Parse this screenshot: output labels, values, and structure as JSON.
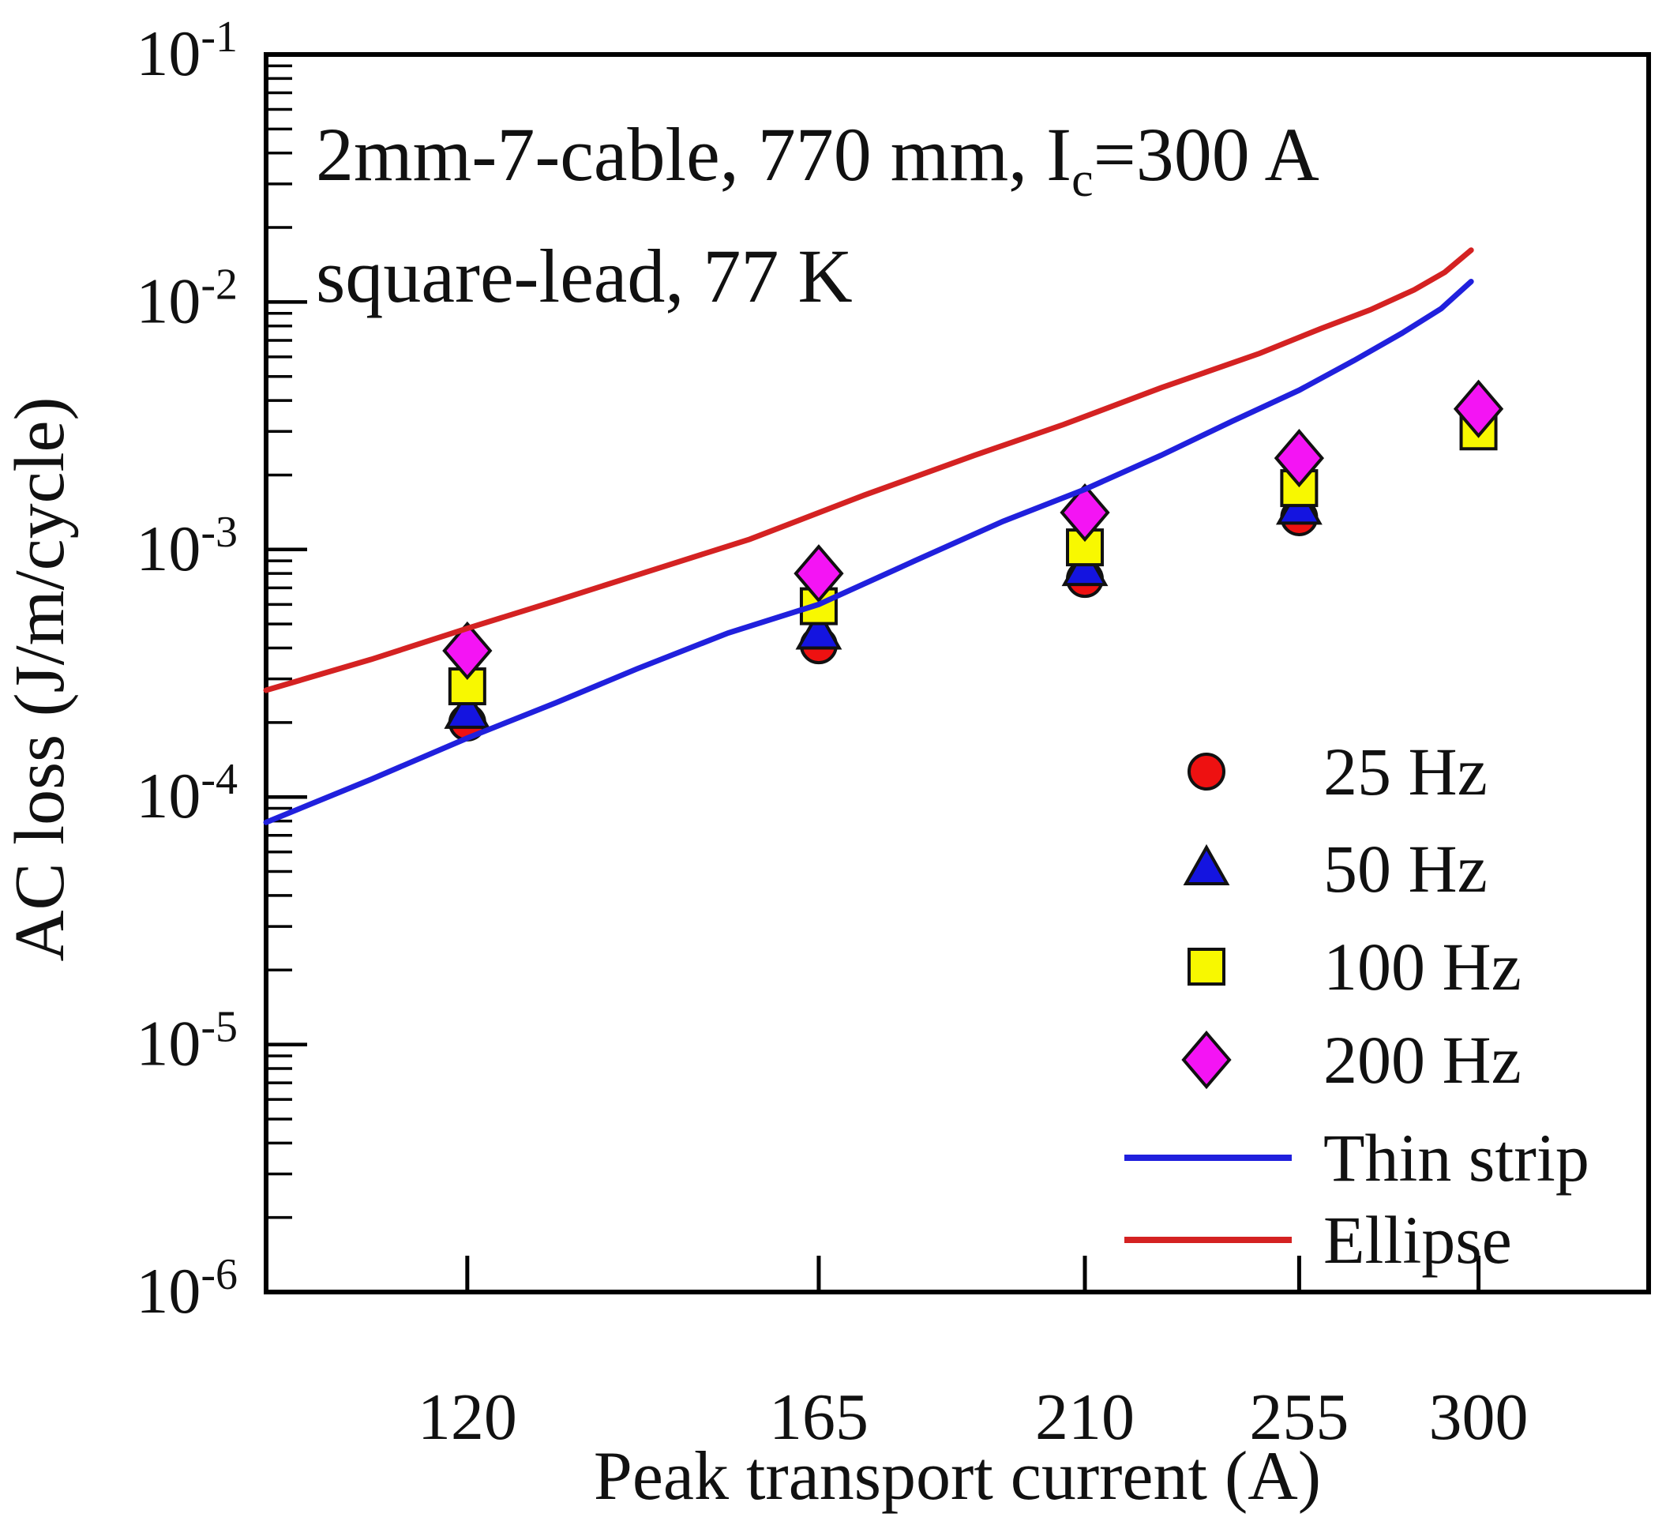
{
  "title": {
    "line1_pre": "2mm-7-cable, 770 mm, I",
    "line1_sub": "c",
    "line1_post": "=300 A",
    "line2": "square-lead, 77 K"
  },
  "axes": {
    "x": {
      "label": "Peak transport current (A)",
      "scale": "log",
      "min": 100,
      "max": 350,
      "tick_values": [
        120,
        165,
        210,
        255,
        300
      ]
    },
    "y": {
      "label": "AC loss (J/m/cycle)",
      "scale": "log",
      "min": 1e-06,
      "max": 0.1,
      "tick_base": "10",
      "tick_exponents": [
        -1,
        -2,
        -3,
        -4,
        -5,
        -6
      ]
    }
  },
  "chart_data": {
    "type": "scatter",
    "title": "2mm-7-cable, 770 mm, Ic=300 A, square-lead, 77 K",
    "xlabel": "Peak transport current (A)",
    "ylabel": "AC loss (J/m/cycle)",
    "xlim": [
      100,
      350
    ],
    "ylim": [
      1e-06,
      0.1
    ],
    "x_scale": "log",
    "y_scale": "log",
    "grid": false,
    "legend_position": "lower right",
    "series": [
      {
        "name": "25 Hz",
        "kind": "scatter",
        "marker": "circle",
        "color": "#ee1111",
        "points": [
          [
            120,
            0.0002
          ],
          [
            165,
            0.00041
          ],
          [
            210,
            0.00076
          ],
          [
            255,
            0.00135
          ]
        ]
      },
      {
        "name": "50 Hz",
        "kind": "scatter",
        "marker": "triangle",
        "color": "#1414e0",
        "points": [
          [
            120,
            0.00022
          ],
          [
            165,
            0.00046
          ],
          [
            210,
            0.00083
          ],
          [
            255,
            0.00147
          ]
        ]
      },
      {
        "name": "100 Hz",
        "kind": "scatter",
        "marker": "square",
        "color": "#f8f800",
        "points": [
          [
            120,
            0.00028
          ],
          [
            165,
            0.00059
          ],
          [
            210,
            0.00102
          ],
          [
            255,
            0.00177
          ],
          [
            300,
            0.003
          ]
        ]
      },
      {
        "name": "200 Hz",
        "kind": "scatter",
        "marker": "diamond",
        "color": "#f414f4",
        "points": [
          [
            120,
            0.00039
          ],
          [
            165,
            0.0008
          ],
          [
            210,
            0.00141
          ],
          [
            255,
            0.00234
          ],
          [
            300,
            0.0037
          ]
        ]
      },
      {
        "name": "Thin strip",
        "kind": "curve",
        "marker": "line",
        "color": "#2020dd",
        "points": [
          [
            100,
            7.9e-05
          ],
          [
            110,
            0.000118
          ],
          [
            120,
            0.000173
          ],
          [
            130,
            0.00024
          ],
          [
            140,
            0.00033
          ],
          [
            152,
            0.00046
          ],
          [
            165,
            0.0006
          ],
          [
            180,
            0.0009
          ],
          [
            195,
            0.0013
          ],
          [
            210,
            0.00175
          ],
          [
            225,
            0.0024
          ],
          [
            240,
            0.0033
          ],
          [
            255,
            0.0044
          ],
          [
            268,
            0.0058
          ],
          [
            280,
            0.0075
          ],
          [
            290,
            0.0094
          ],
          [
            298,
            0.0121
          ]
        ]
      },
      {
        "name": "Ellipse",
        "kind": "curve",
        "marker": "line",
        "color": "#d42222",
        "points": [
          [
            100,
            0.00027
          ],
          [
            110,
            0.00036
          ],
          [
            120,
            0.00048
          ],
          [
            130,
            0.00062
          ],
          [
            140,
            0.00079
          ],
          [
            155,
            0.0011
          ],
          [
            172,
            0.00166
          ],
          [
            190,
            0.0024
          ],
          [
            206,
            0.0032
          ],
          [
            225,
            0.0045
          ],
          [
            246,
            0.0062
          ],
          [
            260,
            0.0078
          ],
          [
            272,
            0.0093
          ],
          [
            283,
            0.0112
          ],
          [
            291,
            0.0132
          ],
          [
            298,
            0.0162
          ]
        ]
      }
    ],
    "legend_entries": [
      "25 Hz",
      "50 Hz",
      "100 Hz",
      "200 Hz",
      "Thin strip",
      "Ellipse"
    ]
  }
}
